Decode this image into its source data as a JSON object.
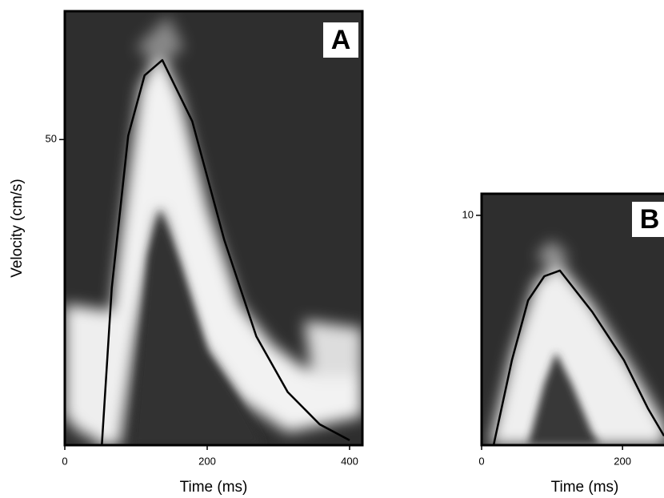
{
  "chart_data": [
    {
      "type": "line",
      "label": "A",
      "x_label": "Time (ms)",
      "y_label": "Velocity (cm/s)",
      "xlim": [
        0,
        418
      ],
      "ylim": [
        0,
        71
      ],
      "xticks": [
        0,
        200,
        400
      ],
      "yticks": [
        50
      ],
      "series": [
        {
          "color": "#000000",
          "x": [
            52,
            66,
            89,
            112,
            137,
            179,
            224,
            269,
            313,
            358,
            400
          ],
          "values": [
            0,
            25.7,
            50.6,
            60.5,
            63,
            53,
            33.6,
            17.8,
            8.7,
            3.4,
            0.8
          ]
        }
      ]
    },
    {
      "type": "line",
      "label": "B",
      "x_label": "Time (ms)",
      "xlim": [
        0,
        260
      ],
      "ylim": [
        0,
        10.94
      ],
      "xticks": [
        0,
        200
      ],
      "yticks": [
        10
      ],
      "series": [
        {
          "color": "#000000",
          "x": [
            17,
            43,
            66,
            89,
            111,
            157,
            202,
            236,
            259
          ],
          "values": [
            0,
            3.7,
            6.3,
            7.35,
            7.6,
            5.8,
            3.7,
            1.6,
            0.4
          ]
        }
      ]
    }
  ]
}
